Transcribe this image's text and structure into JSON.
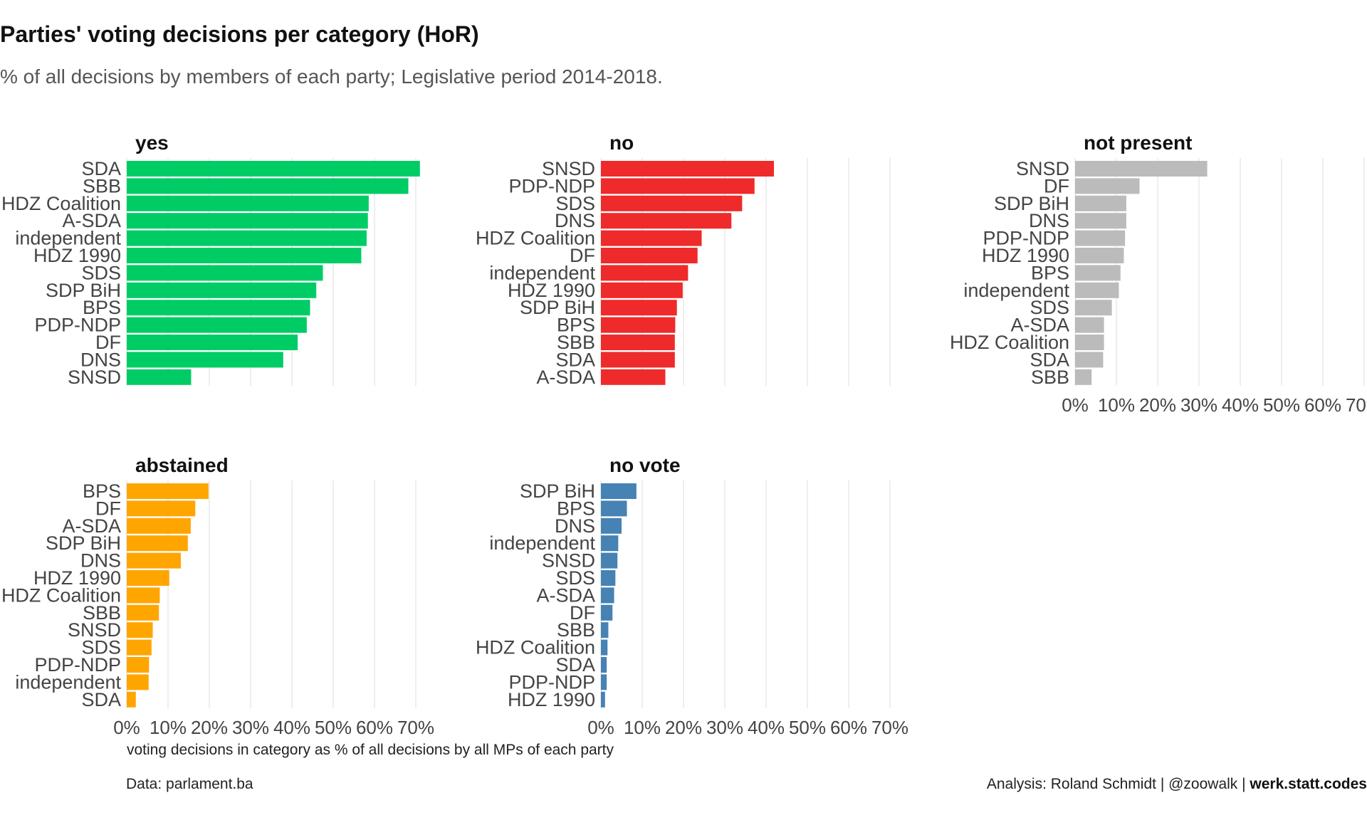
{
  "title": "Parties' voting decisions per category (HoR)",
  "subtitle": "% of all decisions by members of each party; Legislative period 2014-2018.",
  "xlabel": "voting decisions in category as % of all decisions by all MPs of each party",
  "caption": {
    "data_source": "Data: parlament.ba",
    "analysis": "Analysis: Roland Schmidt | @zoowalk | ",
    "site": "werk.statt.codes"
  },
  "x_ticks": [
    "0%",
    "10%",
    "20%",
    "30%",
    "40%",
    "50%",
    "60%",
    "70%"
  ],
  "chart_data": [
    {
      "type": "bar",
      "facet": "yes",
      "color": "#00cc66",
      "xlim": [
        0,
        70
      ],
      "categories": [
        "SDA",
        "SBB",
        "HDZ Coalition",
        "A-SDA",
        "independent",
        "HDZ 1990",
        "SDS",
        "SDP BiH",
        "BPS",
        "PDP-NDP",
        "DF",
        "DNS",
        "SNSD"
      ],
      "values": [
        71,
        68.2,
        58.6,
        58.4,
        58.1,
        56.8,
        47.5,
        45.9,
        44.4,
        43.6,
        41.4,
        37.9,
        15.6
      ]
    },
    {
      "type": "bar",
      "facet": "no",
      "color": "#ee2a2a",
      "xlim": [
        0,
        70
      ],
      "categories": [
        "SNSD",
        "PDP-NDP",
        "SDS",
        "DNS",
        "HDZ Coalition",
        "DF",
        "independent",
        "HDZ 1990",
        "SDP BiH",
        "BPS",
        "SBB",
        "SDA",
        "A-SDA"
      ],
      "values": [
        41.9,
        37.2,
        34.2,
        31.6,
        24.4,
        23.4,
        21.1,
        19.8,
        18.4,
        18.0,
        17.9,
        17.9,
        15.6
      ]
    },
    {
      "type": "bar",
      "facet": "not present",
      "color": "#bbbbbb",
      "xlim": [
        0,
        70
      ],
      "categories": [
        "SNSD",
        "DF",
        "SDP BiH",
        "DNS",
        "PDP-NDP",
        "HDZ 1990",
        "BPS",
        "independent",
        "SDS",
        "A-SDA",
        "HDZ Coalition",
        "SDA",
        "SBB"
      ],
      "values": [
        32,
        15.6,
        12.4,
        12.4,
        12.1,
        11.8,
        11.0,
        10.6,
        8.9,
        7.0,
        7.0,
        6.8,
        4.0
      ]
    },
    {
      "type": "bar",
      "facet": "abstained",
      "color": "#ffa500",
      "xlim": [
        0,
        70
      ],
      "categories": [
        "BPS",
        "DF",
        "A-SDA",
        "SDP BiH",
        "DNS",
        "HDZ 1990",
        "HDZ Coalition",
        "SBB",
        "SNSD",
        "SDS",
        "PDP-NDP",
        "independent",
        "SDA"
      ],
      "values": [
        19.8,
        16.6,
        15.5,
        14.8,
        13.1,
        10.3,
        8.0,
        7.8,
        6.3,
        6.0,
        5.4,
        5.3,
        2.2
      ]
    },
    {
      "type": "bar",
      "facet": "no vote",
      "color": "#4682b4",
      "xlim": [
        0,
        70
      ],
      "categories": [
        "SDP BiH",
        "BPS",
        "DNS",
        "independent",
        "SNSD",
        "SDS",
        "A-SDA",
        "DF",
        "SBB",
        "HDZ Coalition",
        "SDA",
        "PDP-NDP",
        "HDZ 1990"
      ],
      "values": [
        8.6,
        6.3,
        5.0,
        4.2,
        4.0,
        3.5,
        3.2,
        2.8,
        1.8,
        1.6,
        1.4,
        1.4,
        1.0
      ]
    }
  ]
}
